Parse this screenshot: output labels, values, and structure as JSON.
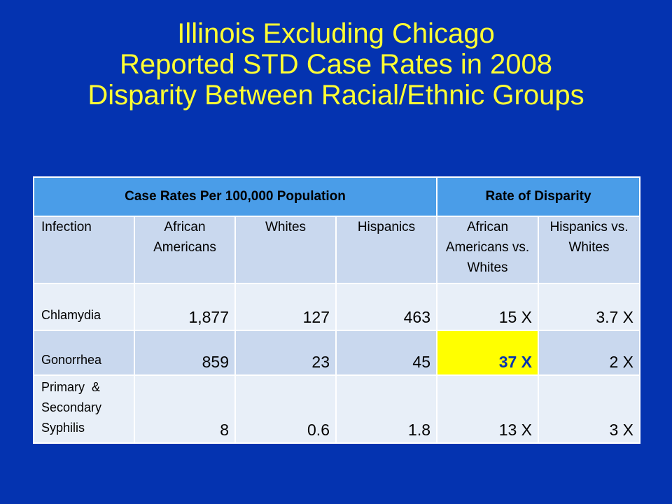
{
  "slide": {
    "title_lines": [
      "Illinois Excluding Chicago",
      "Reported STD Case Rates in 2008",
      "Disparity Between Racial/Ethnic Groups"
    ]
  },
  "table": {
    "band_left": "Case Rates Per 100,000 Population",
    "band_right": "Rate of Disparity",
    "columns": [
      "Infection",
      "African Americans",
      "Whites",
      "Hispanics",
      "African Americans vs. Whites",
      "Hispanics vs. Whites"
    ],
    "rows": [
      {
        "infection": "Chlamydia",
        "african_americans": "1,877",
        "whites": "127",
        "hispanics": "463",
        "aa_vs_whites": "15 X",
        "hisp_vs_whites": "3.7 X"
      },
      {
        "infection": "Gonorrhea",
        "african_americans": "859",
        "whites": "23",
        "hispanics": "45",
        "aa_vs_whites": "37 X",
        "hisp_vs_whites": "2 X"
      },
      {
        "infection": "Primary  & Secondary Syphilis",
        "african_americans": "8",
        "whites": "0.6",
        "hispanics": "1.8",
        "aa_vs_whites": "13 X",
        "hisp_vs_whites": "3 X"
      }
    ],
    "highlight_color": "#ffff00",
    "header_band_color": "#4a9de8"
  },
  "colors": {
    "background": "#0433b0",
    "title_text": "#ffff33"
  }
}
